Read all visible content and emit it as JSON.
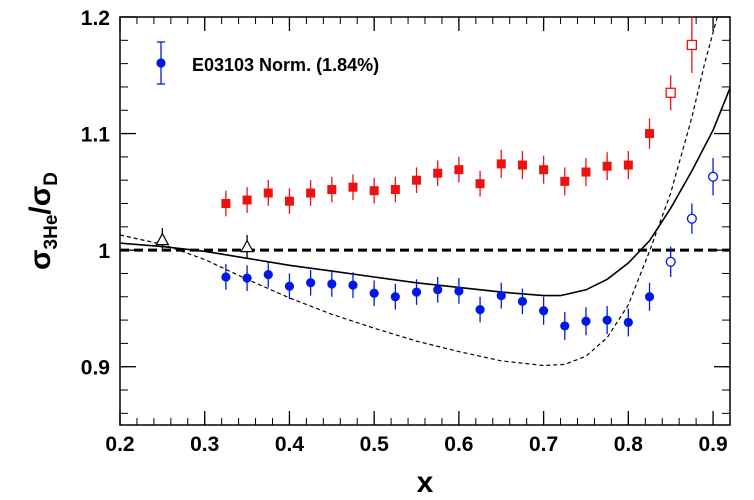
{
  "chart_data": {
    "type": "scatter",
    "title": "",
    "xlabel": "x",
    "ylabel": {
      "base": "σ",
      "sub1": "3He",
      "slash": "/",
      "sub2": "D"
    },
    "xlim": [
      0.2,
      0.92
    ],
    "ylim": [
      0.85,
      1.2
    ],
    "x_ticks": [
      0.2,
      0.3,
      0.4,
      0.5,
      0.6,
      0.7,
      0.8,
      0.9
    ],
    "x_tick_labels": [
      "0.2",
      "0.3",
      "0.4",
      "0.5",
      "0.6",
      "0.7",
      "0.8",
      "0.9"
    ],
    "y_ticks": [
      0.9,
      1.0,
      1.1,
      1.2
    ],
    "y_tick_labels": [
      "0.9",
      "1",
      "1.1",
      "1.2"
    ],
    "legend": {
      "placement": "top-left",
      "label": "E03103 Norm. (1.84%)",
      "error": 0.018
    },
    "reference_line": {
      "y": 1.0,
      "style": "dashed"
    },
    "colors": {
      "blue": "#0018e6",
      "red": "#ee1111",
      "black": "#000000"
    },
    "series": [
      {
        "marker": "filled-square",
        "color": "red",
        "points": [
          [
            0.325,
            1.04,
            0.011
          ],
          [
            0.35,
            1.043,
            0.011
          ],
          [
            0.375,
            1.049,
            0.011
          ],
          [
            0.4,
            1.042,
            0.011
          ],
          [
            0.425,
            1.049,
            0.011
          ],
          [
            0.45,
            1.052,
            0.011
          ],
          [
            0.475,
            1.054,
            0.011
          ],
          [
            0.5,
            1.051,
            0.011
          ],
          [
            0.525,
            1.052,
            0.011
          ],
          [
            0.55,
            1.06,
            0.011
          ],
          [
            0.575,
            1.066,
            0.011
          ],
          [
            0.6,
            1.069,
            0.011
          ],
          [
            0.625,
            1.057,
            0.011
          ],
          [
            0.65,
            1.074,
            0.012
          ],
          [
            0.675,
            1.073,
            0.012
          ],
          [
            0.7,
            1.069,
            0.012
          ],
          [
            0.725,
            1.059,
            0.012
          ],
          [
            0.75,
            1.067,
            0.012
          ],
          [
            0.775,
            1.072,
            0.012
          ],
          [
            0.8,
            1.073,
            0.012
          ],
          [
            0.825,
            1.1,
            0.013
          ]
        ]
      },
      {
        "marker": "open-square",
        "color": "red",
        "points": [
          [
            0.85,
            1.135,
            0.015
          ],
          [
            0.875,
            1.176,
            0.024
          ]
        ]
      },
      {
        "marker": "filled-circle",
        "color": "blue",
        "points": [
          [
            0.325,
            0.977,
            0.011
          ],
          [
            0.35,
            0.976,
            0.011
          ],
          [
            0.375,
            0.979,
            0.011
          ],
          [
            0.4,
            0.969,
            0.011
          ],
          [
            0.425,
            0.972,
            0.011
          ],
          [
            0.45,
            0.971,
            0.011
          ],
          [
            0.475,
            0.97,
            0.011
          ],
          [
            0.5,
            0.963,
            0.011
          ],
          [
            0.525,
            0.96,
            0.011
          ],
          [
            0.55,
            0.964,
            0.011
          ],
          [
            0.575,
            0.966,
            0.011
          ],
          [
            0.6,
            0.965,
            0.011
          ],
          [
            0.625,
            0.949,
            0.011
          ],
          [
            0.65,
            0.961,
            0.011
          ],
          [
            0.675,
            0.956,
            0.011
          ],
          [
            0.7,
            0.948,
            0.012
          ],
          [
            0.725,
            0.935,
            0.012
          ],
          [
            0.75,
            0.939,
            0.012
          ],
          [
            0.775,
            0.94,
            0.012
          ],
          [
            0.8,
            0.938,
            0.012
          ],
          [
            0.825,
            0.96,
            0.012
          ]
        ]
      },
      {
        "marker": "open-circle",
        "color": "blue",
        "points": [
          [
            0.85,
            0.99,
            0.013
          ],
          [
            0.875,
            1.027,
            0.013
          ],
          [
            0.9,
            1.063,
            0.016
          ]
        ]
      },
      {
        "marker": "open-triangle",
        "color": "black",
        "points": [
          [
            0.25,
            1.009,
            0.01
          ],
          [
            0.35,
            1.003,
            0.01
          ]
        ]
      }
    ],
    "curves": [
      {
        "style": "solid",
        "color": "black",
        "points": [
          [
            0.2,
            1.006
          ],
          [
            0.25,
            1.003
          ],
          [
            0.3,
            0.999
          ],
          [
            0.35,
            0.993
          ],
          [
            0.4,
            0.987
          ],
          [
            0.45,
            0.982
          ],
          [
            0.5,
            0.977
          ],
          [
            0.55,
            0.972
          ],
          [
            0.6,
            0.968
          ],
          [
            0.65,
            0.964
          ],
          [
            0.7,
            0.961
          ],
          [
            0.72,
            0.961
          ],
          [
            0.75,
            0.966
          ],
          [
            0.775,
            0.975
          ],
          [
            0.8,
            0.989
          ],
          [
            0.825,
            1.008
          ],
          [
            0.85,
            1.036
          ],
          [
            0.875,
            1.068
          ],
          [
            0.9,
            1.103
          ],
          [
            0.92,
            1.139
          ]
        ]
      },
      {
        "style": "dashed",
        "color": "black",
        "points": [
          [
            0.2,
            1.013
          ],
          [
            0.25,
            1.005
          ],
          [
            0.3,
            0.992
          ],
          [
            0.35,
            0.975
          ],
          [
            0.4,
            0.959
          ],
          [
            0.45,
            0.945
          ],
          [
            0.5,
            0.933
          ],
          [
            0.55,
            0.922
          ],
          [
            0.6,
            0.913
          ],
          [
            0.65,
            0.905
          ],
          [
            0.7,
            0.901
          ],
          [
            0.725,
            0.902
          ],
          [
            0.75,
            0.909
          ],
          [
            0.775,
            0.925
          ],
          [
            0.8,
            0.953
          ],
          [
            0.825,
            0.999
          ],
          [
            0.85,
            1.049
          ],
          [
            0.875,
            1.114
          ],
          [
            0.89,
            1.16
          ],
          [
            0.905,
            1.2
          ]
        ]
      }
    ]
  }
}
